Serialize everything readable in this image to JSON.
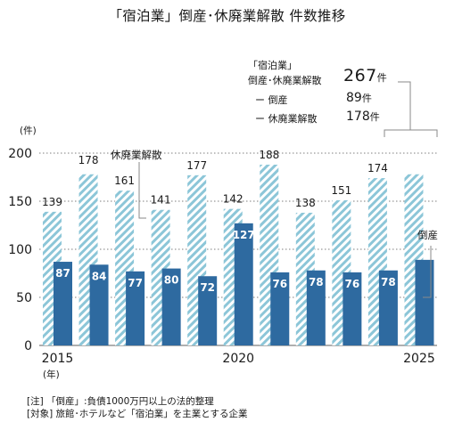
{
  "title": "「宿泊業」倒産･休廃業解散 件数推移",
  "summary": {
    "label_line1": "「宿泊業」",
    "label_line2": "倒産･休廃業解散",
    "total_value": "267",
    "total_unit": "件",
    "bankruptcy_label": "ー 倒産",
    "bankruptcy_value": "89",
    "bankruptcy_unit": "件",
    "closure_label": "ー 休廃業解散",
    "closure_value": "178",
    "closure_unit": "件"
  },
  "notes": {
    "line1": "[注] 「倒産」:負債1000万円以上の法的整理",
    "line2": "[対象] 旅館･ホテルなど「宿泊業」を主業とする企業"
  },
  "colors": {
    "bankruptcy": "#2e6aa0",
    "closure_stripe": "#8cc6d8",
    "grid": "#7f7f7f",
    "leader": "#8a8a8a"
  },
  "chart_data": {
    "type": "bar",
    "x": [
      2015,
      2016,
      2017,
      2018,
      2019,
      2020,
      2021,
      2022,
      2023,
      2024,
      2025
    ],
    "series": [
      {
        "name": "休廃業解散",
        "values": [
          139,
          178,
          161,
          141,
          177,
          142,
          188,
          138,
          151,
          174,
          178
        ],
        "show_labels": [
          true,
          false,
          true,
          true,
          true,
          true,
          true,
          true,
          true,
          true,
          false
        ],
        "style": "hatched"
      },
      {
        "name": "倒産",
        "values": [
          87,
          84,
          77,
          80,
          72,
          127,
          76,
          78,
          76,
          78,
          89
        ],
        "show_labels": [
          true,
          true,
          true,
          true,
          true,
          true,
          true,
          true,
          true,
          true,
          false
        ],
        "style": "solid"
      }
    ],
    "closure_label_extra": {
      "index": 1,
      "text": "178"
    },
    "ylim": [
      0,
      200
    ],
    "yticks": [
      "0",
      "50",
      "100",
      "150",
      "200"
    ],
    "xtick_labels": [
      {
        "index": 0,
        "text": "2015"
      },
      {
        "index": 5,
        "text": "2020"
      },
      {
        "index": 10,
        "text": "2025"
      }
    ],
    "ylabel": "(件)",
    "xlabel": "(年)",
    "annotations": {
      "closure": "休廃業解散",
      "bankruptcy": "倒産"
    },
    "grid": true
  }
}
